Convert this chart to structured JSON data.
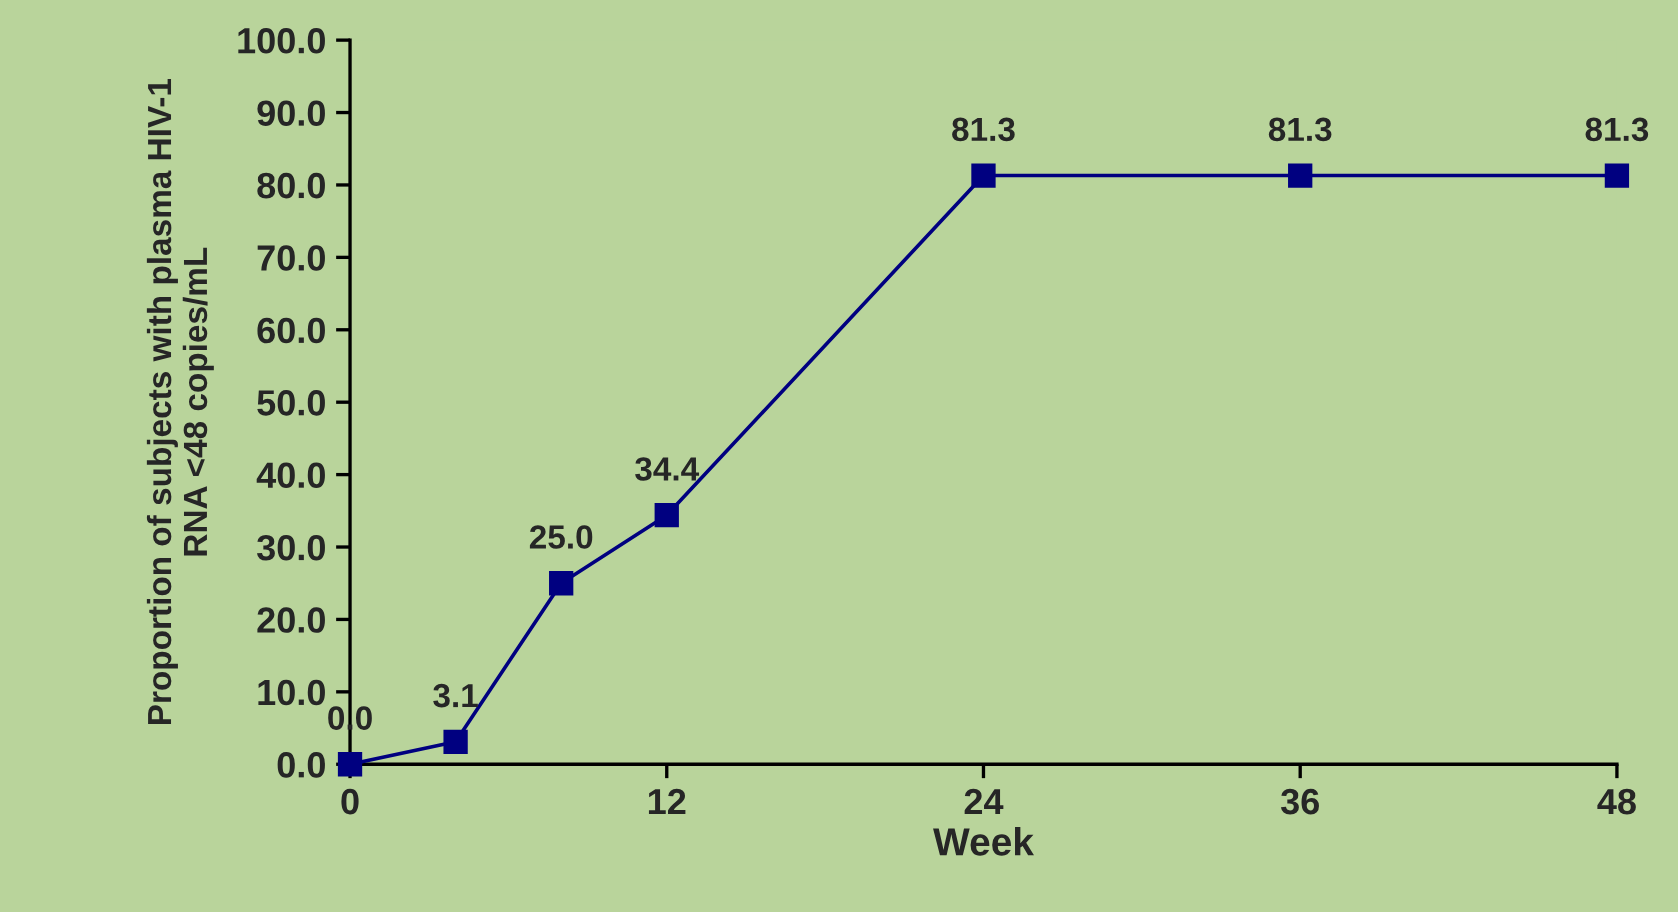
{
  "chart_data": {
    "type": "line",
    "xlabel": "Week",
    "ylabel": "Proportion of subjects with plasma HIV-1\nRNA <48 copies/mL",
    "x": [
      0,
      4,
      8,
      12,
      24,
      36,
      48
    ],
    "series": [
      {
        "color": "#000080",
        "values": [
          0.0,
          3.1,
          25.0,
          34.4,
          81.3,
          81.3,
          81.3
        ],
        "value_labels": [
          "0.0",
          "3.1",
          "25.0",
          "34.4",
          "81.3",
          "81.3",
          "81.3"
        ]
      }
    ],
    "xlim": [
      0,
      48
    ],
    "xticks": [
      0,
      12,
      24,
      36,
      48
    ],
    "ylim": [
      0,
      100
    ],
    "yticks": [
      {
        "value": 0,
        "label": "0.0"
      },
      {
        "value": 10,
        "label": "10.0"
      },
      {
        "value": 20,
        "label": "20.0"
      },
      {
        "value": 30,
        "label": "30.0"
      },
      {
        "value": 40,
        "label": "40.0"
      },
      {
        "value": 50,
        "label": "50.0"
      },
      {
        "value": 60,
        "label": "60.0"
      },
      {
        "value": 70,
        "label": "70.0"
      },
      {
        "value": 80,
        "label": "80.0"
      },
      {
        "value": 90,
        "label": "90.0"
      },
      {
        "value": 100,
        "label": "100.0"
      }
    ],
    "marker": "square",
    "line_style": "solid",
    "grid": false,
    "legend": false
  }
}
